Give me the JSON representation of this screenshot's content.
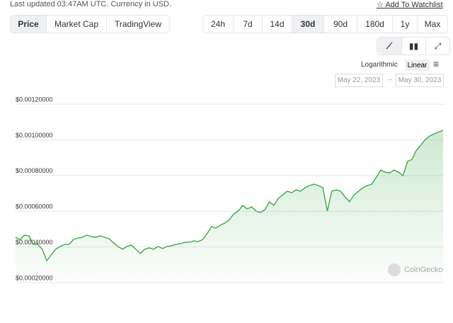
{
  "header": {
    "updated": "Last updated 03:47AM UTC. Currency in USD.",
    "watchlist": "Add To Watchlist"
  },
  "tabs": [
    "Price",
    "Market Cap",
    "TradingView"
  ],
  "ranges": [
    "24h",
    "7d",
    "14d",
    "30d",
    "90d",
    "180d",
    "1y",
    "Max"
  ],
  "scale": {
    "log": "Logarithmic",
    "linear": "Linear"
  },
  "dates": {
    "from": "May 22, 2023",
    "to": "May 30, 2023"
  },
  "watermark": "CoinGecko",
  "chart_data": {
    "type": "line",
    "color": "#3ea84b",
    "grid": true,
    "ylim": [
      0.00018,
      0.00124
    ],
    "yticks": [
      {
        "value": 0.0002,
        "label": "$0.00020000"
      },
      {
        "value": 0.0004,
        "label": "$0.00040000"
      },
      {
        "value": 0.0006,
        "label": "$0.00060000"
      },
      {
        "value": 0.0008,
        "label": "$0.00080000"
      },
      {
        "value": 0.001,
        "label": "$0.00100000"
      },
      {
        "value": 0.0012,
        "label": "$0.00120000"
      }
    ],
    "categories": [
      null,
      null,
      null,
      null,
      null,
      null,
      null,
      null,
      null,
      null,
      null,
      null,
      null,
      null,
      null,
      null,
      null,
      null,
      null,
      null,
      null,
      null,
      null,
      null,
      null,
      null,
      null,
      null,
      null,
      null,
      null,
      null,
      null,
      null,
      null,
      null,
      null,
      null,
      null,
      null,
      null,
      null,
      null,
      null,
      null,
      null,
      null,
      null,
      null,
      null,
      null,
      null,
      null,
      null,
      null,
      null,
      null,
      null,
      null,
      null,
      null,
      null,
      null,
      null,
      null,
      null,
      null,
      null,
      null,
      null,
      null,
      null,
      null,
      null,
      null,
      null,
      null,
      null,
      null,
      null,
      null,
      null,
      null,
      null,
      null,
      null,
      null,
      null,
      null,
      null,
      null,
      null,
      null,
      null,
      null,
      null,
      null
    ],
    "values": [
      0.00043,
      0.000418,
      0.000442,
      0.000438,
      0.00039,
      0.00039,
      0.000363,
      0.000299,
      0.000331,
      0.000363,
      0.000379,
      0.00039,
      0.00039,
      0.000418,
      0.000426,
      0.00043,
      0.000442,
      0.000434,
      0.00043,
      0.000438,
      0.00043,
      0.000422,
      0.000398,
      0.000379,
      0.000363,
      0.000379,
      0.000387,
      0.000363,
      0.000339,
      0.000363,
      0.000371,
      0.000363,
      0.000379,
      0.000367,
      0.000379,
      0.000383,
      0.00039,
      0.000394,
      0.000402,
      0.000402,
      0.00041,
      0.000406,
      0.000418,
      0.00045,
      0.00049,
      0.000482,
      0.000498,
      0.00051,
      0.000529,
      0.000561,
      0.000577,
      0.000609,
      0.000589,
      0.000601,
      0.000577,
      0.000569,
      0.000585,
      0.000629,
      0.000609,
      0.000648,
      0.000668,
      0.000688,
      0.00068,
      0.000696,
      0.000688,
      0.000708,
      0.00072,
      0.000728,
      0.00072,
      0.000708,
      0.000577,
      0.000688,
      0.000696,
      0.000688,
      0.000656,
      0.000629,
      0.000668,
      0.000688,
      0.000708,
      0.00072,
      0.000728,
      0.000767,
      0.000807,
      0.000795,
      0.000791,
      0.000807,
      0.000795,
      0.000775,
      0.000855,
      0.000867,
      0.000918,
      0.000946,
      0.000978,
      0.000998,
      0.00101,
      0.00102,
      0.00103
    ]
  }
}
